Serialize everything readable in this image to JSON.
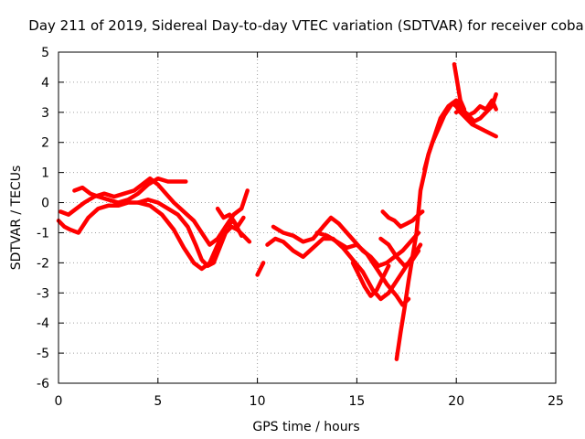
{
  "chart_data": {
    "type": "scatter",
    "title": "Day 211 of 2019, Sidereal Day-to-day VTEC variation (SDTVAR) for receiver coba",
    "xlabel": "GPS time / hours",
    "ylabel": "SDTVAR / TECUs",
    "xlim": [
      0,
      25
    ],
    "ylim": [
      -6,
      5
    ],
    "xticks": [
      0,
      5,
      10,
      15,
      20,
      25
    ],
    "yticks": [
      -6,
      -5,
      -4,
      -3,
      -2,
      -1,
      0,
      1,
      2,
      3,
      4,
      5
    ],
    "grid": true,
    "series_color": "#ff0000",
    "series": [
      {
        "x": [
          0,
          0.3,
          0.6,
          1.0,
          1.5,
          2.0,
          2.5,
          3.0,
          3.5,
          4.0,
          4.5,
          5.0,
          5.5,
          6.0,
          6.5,
          6.9,
          7.2,
          7.5,
          7.8,
          8.1,
          8.4,
          8.7,
          9.0,
          9.3,
          9.6
        ],
        "y": [
          -0.6,
          -0.8,
          -0.9,
          -1.0,
          -0.5,
          -0.2,
          -0.1,
          -0.1,
          0.0,
          0.0,
          0.1,
          0.0,
          -0.2,
          -0.4,
          -0.8,
          -1.4,
          -1.9,
          -2.1,
          -2.0,
          -1.5,
          -1.0,
          -0.8,
          -0.9,
          -1.1,
          -1.3
        ]
      },
      {
        "x": [
          0.1,
          0.5,
          0.9,
          1.3,
          1.8,
          2.3,
          2.8,
          3.3,
          3.8,
          4.2,
          4.6,
          5.0,
          5.4,
          5.8,
          6.3,
          6.8,
          7.2,
          7.6,
          8.0,
          8.4,
          8.8,
          9.2,
          9.5
        ],
        "y": [
          -0.3,
          -0.4,
          -0.2,
          0.0,
          0.2,
          0.3,
          0.2,
          0.3,
          0.4,
          0.6,
          0.8,
          0.6,
          0.3,
          0.0,
          -0.3,
          -0.6,
          -1.0,
          -1.4,
          -1.2,
          -0.8,
          -0.4,
          -0.2,
          0.4
        ]
      },
      {
        "x": [
          0.8,
          1.2,
          1.6,
          2.0,
          2.5,
          3.0,
          3.5,
          4.0,
          4.5,
          5.0,
          5.5,
          6.0,
          6.4
        ],
        "y": [
          0.4,
          0.5,
          0.3,
          0.2,
          0.1,
          0.0,
          0.1,
          0.3,
          0.6,
          0.8,
          0.7,
          0.7,
          0.7
        ]
      },
      {
        "x": [
          4.0,
          4.6,
          5.2,
          5.8,
          6.3,
          6.8,
          7.2,
          7.6,
          8.0,
          8.4,
          8.8,
          9.2
        ],
        "y": [
          0.0,
          -0.1,
          -0.4,
          -0.9,
          -1.5,
          -2.0,
          -2.2,
          -2.0,
          -1.4,
          -0.8,
          -0.6,
          -1.1
        ]
      },
      {
        "x": [
          8.0,
          8.3,
          8.6,
          9.0,
          9.3
        ],
        "y": [
          -0.2,
          -0.5,
          -0.4,
          -0.8,
          -0.5
        ]
      },
      {
        "x": [
          10.0,
          10.3
        ],
        "y": [
          -2.4,
          -2.0
        ]
      },
      {
        "x": [
          10.5,
          10.9,
          11.3,
          11.8,
          12.3,
          12.8,
          13.3,
          13.8,
          14.3,
          14.8,
          15.3,
          15.8,
          16.2,
          16.6,
          17.0,
          17.4,
          17.8,
          18.0,
          18.2
        ],
        "y": [
          -1.4,
          -1.2,
          -1.3,
          -1.6,
          -1.8,
          -1.5,
          -1.2,
          -1.2,
          -1.5,
          -1.9,
          -2.3,
          -2.9,
          -3.2,
          -3.0,
          -2.6,
          -2.2,
          -1.8,
          -1.6,
          -1.4
        ]
      },
      {
        "x": [
          10.8,
          11.3,
          11.8,
          12.3,
          12.8,
          13.3,
          13.7,
          14.1,
          14.5,
          14.9,
          15.3,
          15.7,
          16.1,
          16.5,
          16.9,
          17.3,
          17.7,
          18.1
        ],
        "y": [
          -0.8,
          -1.0,
          -1.1,
          -1.3,
          -1.2,
          -0.8,
          -0.5,
          -0.7,
          -1.0,
          -1.3,
          -1.6,
          -1.8,
          -2.1,
          -2.0,
          -1.8,
          -1.6,
          -1.3,
          -1.0
        ]
      },
      {
        "x": [
          13.0,
          13.5,
          14.0,
          14.5,
          15.0,
          15.5,
          16.0,
          16.5,
          17.0,
          17.3,
          17.6
        ],
        "y": [
          -1.0,
          -1.1,
          -1.3,
          -1.5,
          -1.4,
          -1.7,
          -2.2,
          -2.7,
          -3.1,
          -3.4,
          -3.2
        ]
      },
      {
        "x": [
          14.8,
          15.1,
          15.4,
          15.7,
          16.0,
          16.3,
          16.6
        ],
        "y": [
          -2.0,
          -2.4,
          -2.8,
          -3.1,
          -2.9,
          -2.5,
          -2.1
        ]
      },
      {
        "x": [
          16.2,
          16.6,
          17.0,
          17.4,
          17.8,
          18.1
        ],
        "y": [
          -1.2,
          -1.4,
          -1.8,
          -2.1,
          -1.9,
          -1.6
        ]
      },
      {
        "x": [
          16.3,
          16.6,
          16.9,
          17.2,
          17.5,
          17.8,
          18.1,
          18.3
        ],
        "y": [
          -0.3,
          -0.5,
          -0.6,
          -0.8,
          -0.7,
          -0.6,
          -0.4,
          -0.3
        ]
      },
      {
        "x": [
          17.0,
          17.2,
          17.4,
          17.6,
          17.8,
          18.0,
          18.2,
          18.4,
          18.6,
          18.8,
          19.0,
          19.2,
          19.4,
          19.6,
          19.8,
          20.0,
          20.2,
          20.5,
          20.8,
          21.1,
          21.4,
          21.7,
          22.0
        ],
        "y": [
          -5.2,
          -4.3,
          -3.5,
          -2.6,
          -1.8,
          -1.0,
          0.4,
          1.0,
          1.6,
          2.0,
          2.4,
          2.8,
          3.0,
          3.2,
          3.3,
          3.2,
          3.0,
          2.8,
          2.6,
          2.5,
          2.4,
          2.3,
          2.2
        ]
      },
      {
        "x": [
          18.4,
          18.6,
          18.8,
          19.0,
          19.2,
          19.4,
          19.6,
          19.8,
          20.0,
          20.3,
          20.6,
          20.9,
          21.2,
          21.5,
          21.8,
          22.0
        ],
        "y": [
          1.1,
          1.6,
          2.0,
          2.3,
          2.6,
          2.9,
          3.1,
          3.3,
          3.4,
          3.1,
          2.9,
          3.0,
          3.2,
          3.1,
          3.4,
          3.1
        ]
      },
      {
        "x": [
          19.9,
          20.0,
          20.1,
          20.2,
          20.4
        ],
        "y": [
          4.6,
          4.2,
          3.8,
          3.4,
          3.1
        ]
      },
      {
        "x": [
          20.0,
          20.3,
          20.6,
          20.9,
          21.2,
          21.5,
          21.8,
          22.0
        ],
        "y": [
          3.0,
          3.1,
          2.9,
          2.7,
          2.8,
          3.0,
          3.2,
          3.6
        ]
      }
    ]
  }
}
